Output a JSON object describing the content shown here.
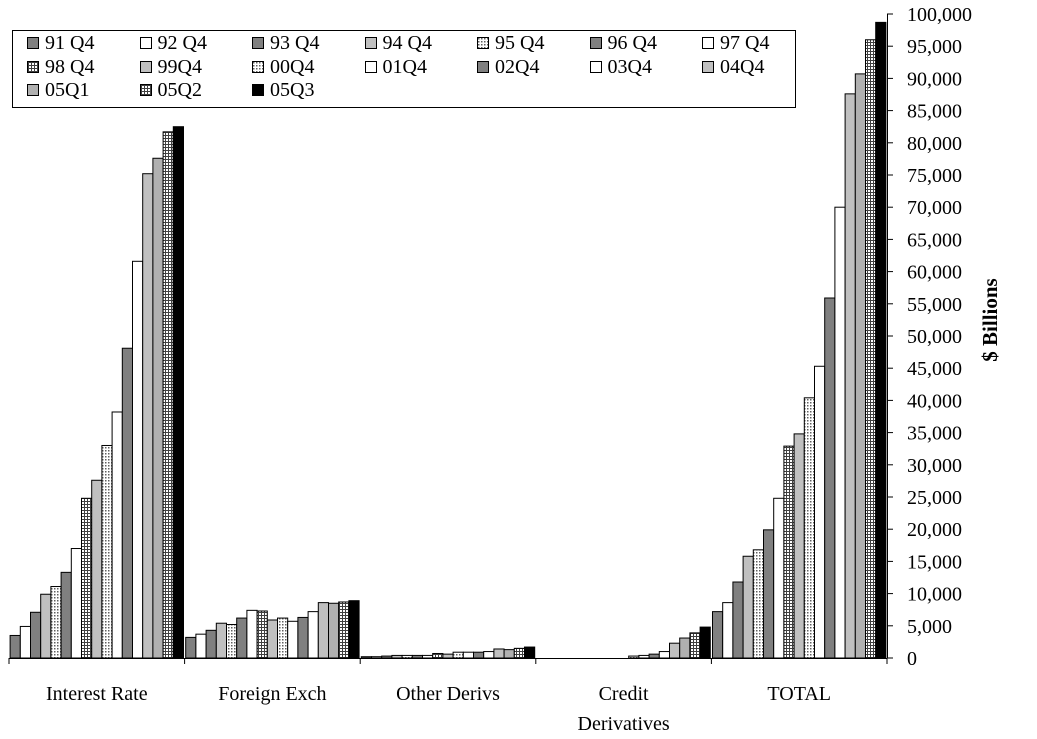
{
  "chart_data": {
    "type": "bar",
    "categories": [
      "Interest Rate",
      "Foreign Exch",
      "Other Derivs",
      "Credit Derivatives",
      "TOTAL"
    ],
    "category_lines": [
      [
        "Interest Rate"
      ],
      [
        "Foreign Exch"
      ],
      [
        "Other Derivs"
      ],
      [
        "Credit",
        "Derivatives"
      ],
      [
        "TOTAL"
      ]
    ],
    "ylabel": "$ Billions",
    "ylim": [
      0,
      100000
    ],
    "ytick_step": 5000,
    "ytick_labels": [
      "0",
      "5,000",
      "10,000",
      "15,000",
      "20,000",
      "25,000",
      "30,000",
      "35,000",
      "40,000",
      "45,000",
      "50,000",
      "55,000",
      "60,000",
      "65,000",
      "70,000",
      "75,000",
      "80,000",
      "85,000",
      "90,000",
      "95,000",
      "100,000"
    ],
    "y_axis_side": "right",
    "legend_position": "top-left",
    "series": [
      {
        "name": "91 Q4",
        "fill": "#808080",
        "pattern": "solid",
        "values": [
          3500,
          3200,
          200,
          0,
          7200
        ]
      },
      {
        "name": "92 Q4",
        "fill": "#ffffff",
        "pattern": "solid",
        "values": [
          4900,
          3700,
          200,
          0,
          8600
        ]
      },
      {
        "name": "93 Q4",
        "fill": "#808080",
        "pattern": "solid",
        "values": [
          7100,
          4300,
          300,
          0,
          11800
        ]
      },
      {
        "name": "94 Q4",
        "fill": "#c0c0c0",
        "pattern": "solid",
        "values": [
          9900,
          5400,
          400,
          0,
          15800
        ]
      },
      {
        "name": "95 Q4",
        "fill": "#c0c0c0",
        "pattern": "dots",
        "values": [
          11100,
          5200,
          400,
          0,
          16800
        ]
      },
      {
        "name": "96 Q4",
        "fill": "#808080",
        "pattern": "solid",
        "values": [
          13300,
          6200,
          400,
          0,
          19900
        ]
      },
      {
        "name": "97 Q4",
        "fill": "#ffffff",
        "pattern": "solid",
        "values": [
          17000,
          7400,
          400,
          0,
          24800
        ]
      },
      {
        "name": "98 Q4",
        "fill": "#808080",
        "pattern": "grid",
        "values": [
          24800,
          7300,
          700,
          0,
          32900
        ]
      },
      {
        "name": "99Q4",
        "fill": "#c0c0c0",
        "pattern": "solid",
        "values": [
          27600,
          5900,
          600,
          0,
          34800
        ]
      },
      {
        "name": "00Q4",
        "fill": "#d8d8d8",
        "pattern": "dots",
        "values": [
          33000,
          6200,
          900,
          300,
          40400
        ]
      },
      {
        "name": "01Q4",
        "fill": "#ffffff",
        "pattern": "solid",
        "values": [
          38200,
          5700,
          900,
          400,
          45300
        ]
      },
      {
        "name": "02Q4",
        "fill": "#808080",
        "pattern": "solid",
        "values": [
          48100,
          6300,
          900,
          600,
          55900
        ]
      },
      {
        "name": "03Q4",
        "fill": "#ffffff",
        "pattern": "solid",
        "values": [
          61600,
          7200,
          1000,
          1000,
          70000
        ]
      },
      {
        "name": "04Q4",
        "fill": "#c0c0c0",
        "pattern": "solid",
        "values": [
          75200,
          8600,
          1400,
          2300,
          87600
        ]
      },
      {
        "name": "05Q1",
        "fill": "#b0b0b0",
        "pattern": "solid",
        "values": [
          77600,
          8500,
          1300,
          3100,
          90700
        ]
      },
      {
        "name": "05Q2",
        "fill": "#c0c0c0",
        "pattern": "grid",
        "values": [
          81700,
          8700,
          1500,
          3900,
          96000
        ]
      },
      {
        "name": "05Q3",
        "fill": "#000000",
        "pattern": "solid",
        "values": [
          82500,
          8900,
          1700,
          4800,
          98700
        ]
      }
    ]
  }
}
